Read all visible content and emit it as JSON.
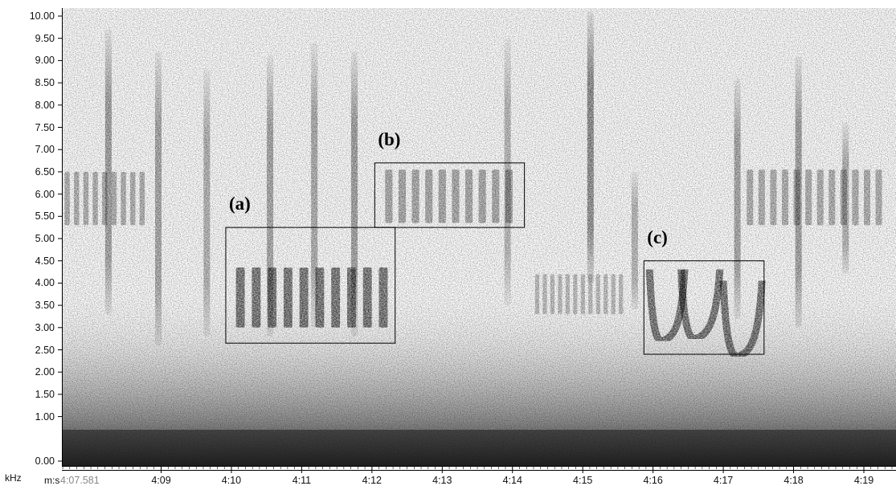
{
  "chart_data": {
    "type": "spectrogram",
    "y_unit": "kHz",
    "y_ticks": [
      "10.00",
      "9.50",
      "9.00",
      "8.50",
      "8.00",
      "7.50",
      "7.00",
      "6.50",
      "6.00",
      "5.50",
      "5.00",
      "4.50",
      "4.00",
      "3.50",
      "3.00",
      "2.50",
      "2.00",
      "1.50",
      "1.00",
      "0.00"
    ],
    "ylim": [
      0,
      10.2
    ],
    "x_unit": "m:s",
    "x_start_label": "4:07.581",
    "x_ticks": [
      "4:09",
      "4:10",
      "4:11",
      "4:12",
      "4:13",
      "4:14",
      "4:15",
      "4:16",
      "4:17",
      "4:18",
      "4:19"
    ],
    "x_tick_seconds": [
      249,
      250,
      251,
      252,
      253,
      254,
      255,
      256,
      257,
      258,
      259
    ],
    "xlim_seconds": [
      247.581,
      259.45
    ],
    "annotations": [
      {
        "label": "(a)",
        "t_start": 249.92,
        "t_end": 252.33,
        "f_low": 2.65,
        "f_high": 5.25
      },
      {
        "label": "(b)",
        "t_start": 252.04,
        "t_end": 254.17,
        "f_low": 5.25,
        "f_high": 6.7
      },
      {
        "label": "(c)",
        "t_start": 255.87,
        "t_end": 257.58,
        "f_low": 2.4,
        "f_high": 4.5
      }
    ],
    "sound_events": [
      {
        "kind": "streak",
        "t": 248.25,
        "f_low": 3.3,
        "f_high": 9.7,
        "level": 0.75
      },
      {
        "kind": "streak",
        "t": 248.96,
        "f_low": 2.6,
        "f_high": 9.2,
        "level": 0.7
      },
      {
        "kind": "streak",
        "t": 249.65,
        "f_low": 2.8,
        "f_high": 8.8,
        "level": 0.6
      },
      {
        "kind": "streak",
        "t": 250.55,
        "f_low": 2.8,
        "f_high": 9.1,
        "level": 0.7
      },
      {
        "kind": "streak",
        "t": 251.18,
        "f_low": 3.0,
        "f_high": 9.4,
        "level": 0.65
      },
      {
        "kind": "streak",
        "t": 251.75,
        "f_low": 2.8,
        "f_high": 9.2,
        "level": 0.75
      },
      {
        "kind": "streak",
        "t": 253.93,
        "f_low": 3.5,
        "f_high": 9.5,
        "level": 0.55
      },
      {
        "kind": "streak",
        "t": 255.11,
        "f_low": 4.0,
        "f_high": 10.1,
        "level": 0.9
      },
      {
        "kind": "streak",
        "t": 255.74,
        "f_low": 3.4,
        "f_high": 6.5,
        "level": 0.55
      },
      {
        "kind": "streak",
        "t": 257.2,
        "f_low": 3.2,
        "f_high": 8.6,
        "level": 0.7
      },
      {
        "kind": "streak",
        "t": 258.07,
        "f_low": 3.0,
        "f_high": 9.1,
        "level": 0.75
      },
      {
        "kind": "streak",
        "t": 258.74,
        "f_low": 4.2,
        "f_high": 7.6,
        "level": 0.6
      },
      {
        "kind": "pulse_train",
        "t_start": 247.6,
        "t_end": 248.8,
        "f_low": 5.3,
        "f_high": 6.5,
        "count": 9,
        "level": 0.55
      },
      {
        "kind": "pulse_train",
        "t_start": 252.15,
        "t_end": 254.05,
        "f_low": 5.35,
        "f_high": 6.55,
        "count": 10,
        "level": 0.6
      },
      {
        "kind": "pulse_train",
        "t_start": 257.3,
        "t_end": 259.3,
        "f_low": 5.3,
        "f_high": 6.55,
        "count": 12,
        "level": 0.55
      },
      {
        "kind": "pulse_train",
        "t_start": 250.02,
        "t_end": 252.28,
        "f_low": 3.0,
        "f_high": 4.35,
        "count": 10,
        "level": 0.95
      },
      {
        "kind": "pulse_train",
        "t_start": 254.3,
        "t_end": 255.6,
        "f_low": 3.3,
        "f_high": 4.2,
        "count": 12,
        "level": 0.45
      },
      {
        "kind": "u_call",
        "t_start": 255.95,
        "t_end": 256.45,
        "f_low": 2.75,
        "f_high": 4.3,
        "level": 0.95
      },
      {
        "kind": "u_call",
        "t_start": 256.4,
        "t_end": 256.95,
        "f_low": 2.8,
        "f_high": 4.3,
        "level": 0.95
      },
      {
        "kind": "u_call",
        "t_start": 257.0,
        "t_end": 257.55,
        "f_low": 2.4,
        "f_high": 4.05,
        "level": 0.95
      }
    ]
  }
}
